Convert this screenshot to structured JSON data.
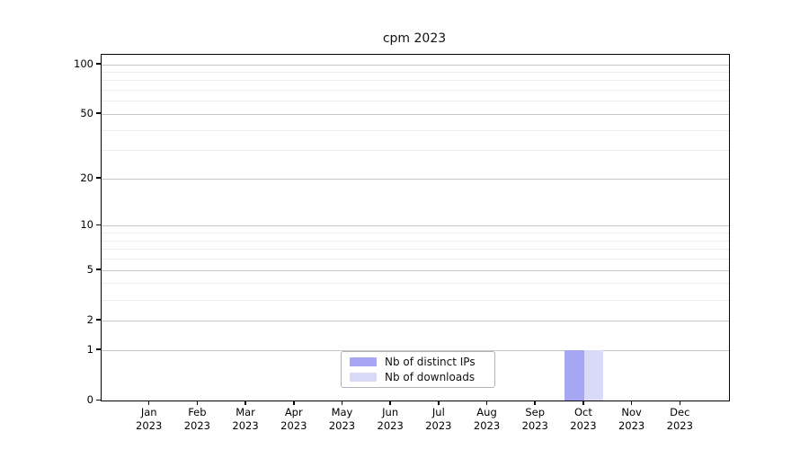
{
  "title": "cpm 2023",
  "legend": {
    "items": [
      {
        "label": "Nb of distinct IPs",
        "color": "#a6a6f2"
      },
      {
        "label": "Nb of downloads",
        "color": "#d9d9f8"
      }
    ]
  },
  "colors": {
    "bar_distinct_ips": "#a6a6f2",
    "bar_downloads": "#d9d9f8",
    "grid_major": "#c6c6c6",
    "grid_minor": "#ececec",
    "axis": "#000000"
  },
  "chart_data": {
    "type": "bar",
    "title": "cpm 2023",
    "categories": [
      "Jan 2023",
      "Feb 2023",
      "Mar 2023",
      "Apr 2023",
      "May 2023",
      "Jun 2023",
      "Jul 2023",
      "Aug 2023",
      "Sep 2023",
      "Oct 2023",
      "Nov 2023",
      "Dec 2023"
    ],
    "series": [
      {
        "name": "Nb of distinct IPs",
        "color": "#a6a6f2",
        "values": [
          0,
          0,
          0,
          0,
          0,
          0,
          0,
          0,
          0,
          1,
          0,
          0
        ]
      },
      {
        "name": "Nb of downloads",
        "color": "#d9d9f8",
        "values": [
          0,
          0,
          0,
          0,
          0,
          0,
          0,
          0,
          0,
          1,
          0,
          0
        ]
      }
    ],
    "xlabel": "",
    "ylabel": "",
    "y_axis": {
      "scale": "log10(value+1)",
      "ticks": [
        0,
        1,
        2,
        5,
        10,
        20,
        50,
        100
      ],
      "minor_ticks": [
        3,
        4,
        6,
        7,
        8,
        9,
        30,
        40,
        60,
        70,
        80,
        90
      ],
      "min": 0,
      "max": 114
    },
    "grid": "horizontal",
    "legend_position": "bottom-center-inside"
  }
}
